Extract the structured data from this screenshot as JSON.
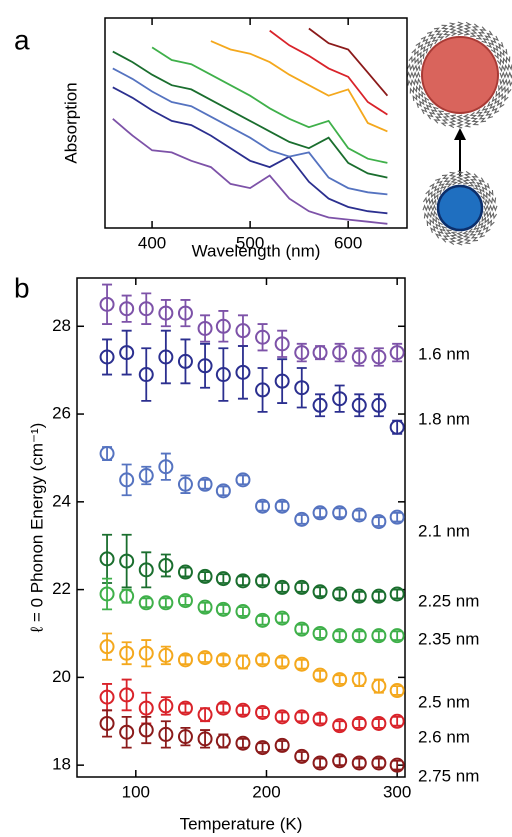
{
  "chart_data": [
    {
      "type": "line",
      "panel_label": "a",
      "ylabel": "Absorption",
      "xlabel": "Wavelength (nm)",
      "xlim": [
        352,
        660
      ],
      "xticks": [
        400,
        500,
        600
      ],
      "ylim": [
        0,
        10
      ],
      "x": [
        360,
        380,
        400,
        420,
        440,
        460,
        480,
        500,
        520,
        540,
        560,
        580,
        600,
        620,
        640
      ],
      "series": [
        {
          "color": "#7d52a8",
          "values": [
            5.2,
            4.4,
            3.7,
            3.6,
            3.2,
            2.9,
            2.1,
            1.9,
            2.5,
            1.4,
            0.8,
            0.5,
            0.4,
            0.3,
            0.2
          ]
        },
        {
          "color": "#2b2f8f",
          "values": [
            6.7,
            6.2,
            5.6,
            5.1,
            4.9,
            4.4,
            3.8,
            3.2,
            2.9,
            3.4,
            2.2,
            1.4,
            1.0,
            0.8,
            0.7
          ]
        },
        {
          "color": "#5573c0",
          "values": [
            7.6,
            7.1,
            6.5,
            6.0,
            5.8,
            5.3,
            4.8,
            4.3,
            3.7,
            3.4,
            3.6,
            2.4,
            1.9,
            1.7,
            1.6
          ]
        },
        {
          "color": "#1a6e2e",
          "values": [
            8.4,
            7.9,
            7.3,
            6.8,
            6.6,
            6.1,
            5.6,
            5.1,
            4.6,
            4.1,
            3.8,
            4.3,
            3.1,
            2.6,
            2.4
          ]
        },
        {
          "color": "#3fb04a",
          "values": [
            null,
            null,
            8.6,
            8.0,
            7.8,
            7.3,
            6.8,
            6.3,
            5.7,
            5.2,
            4.8,
            5.1,
            3.8,
            3.3,
            3.1
          ]
        },
        {
          "color": "#f4a81d",
          "values": [
            null,
            null,
            null,
            null,
            null,
            8.9,
            8.5,
            8.3,
            7.9,
            7.3,
            6.8,
            6.3,
            6.6,
            5.0,
            4.6
          ]
        },
        {
          "color": "#d9232a",
          "values": [
            null,
            null,
            null,
            null,
            null,
            null,
            null,
            null,
            9.4,
            8.7,
            8.2,
            7.6,
            7.2,
            6.0,
            5.4
          ]
        },
        {
          "color": "#8b1a1a",
          "values": [
            null,
            null,
            null,
            null,
            null,
            null,
            null,
            null,
            null,
            null,
            9.5,
            8.8,
            8.5,
            7.4,
            6.3
          ]
        }
      ]
    },
    {
      "type": "scatter",
      "panel_label": "b",
      "ylabel": "ℓ = 0 Phonon Energy (cm⁻¹)",
      "xlabel": "Temperature (K)",
      "xlim": [
        55,
        306
      ],
      "xticks": [
        100,
        200,
        300
      ],
      "ylim": [
        17.73,
        29.1
      ],
      "yticks": [
        18,
        20,
        22,
        24,
        26,
        28
      ],
      "x": [
        78,
        93,
        108,
        123,
        138,
        153,
        167,
        182,
        197,
        212,
        227,
        241,
        256,
        271,
        286,
        300
      ],
      "series": [
        {
          "name": "1.6 nm",
          "color": "#7d52a8",
          "values": [
            28.5,
            28.4,
            28.4,
            28.3,
            28.3,
            27.95,
            28.0,
            27.9,
            27.75,
            27.6,
            27.4,
            27.4,
            27.4,
            27.3,
            27.3,
            27.4
          ],
          "errors": [
            0.45,
            0.3,
            0.35,
            0.3,
            0.3,
            0.3,
            0.35,
            0.35,
            0.3,
            0.3,
            0.2,
            0.15,
            0.2,
            0.2,
            0.2,
            0.2
          ]
        },
        {
          "name": "1.8 nm",
          "color": "#2b2f8f",
          "values": [
            27.3,
            27.4,
            26.9,
            27.3,
            27.2,
            27.1,
            26.9,
            26.95,
            26.55,
            26.75,
            26.6,
            26.2,
            26.35,
            26.2,
            26.2,
            25.7
          ],
          "errors": [
            0.4,
            0.5,
            0.6,
            0.6,
            0.5,
            0.5,
            0.6,
            0.6,
            0.5,
            0.5,
            0.45,
            0.25,
            0.3,
            0.25,
            0.25,
            0.15
          ]
        },
        {
          "name": "2.1 nm",
          "color": "#5573c0",
          "values": [
            25.1,
            24.5,
            24.6,
            24.8,
            24.4,
            24.4,
            24.25,
            24.5,
            23.9,
            23.9,
            23.6,
            23.75,
            23.75,
            23.7,
            23.55,
            23.65
          ],
          "errors": [
            0.15,
            0.35,
            0.2,
            0.3,
            0.2,
            0.1,
            0.1,
            0.1,
            0.1,
            0.1,
            0.1,
            0.1,
            0.1,
            0.1,
            0.1,
            0.1
          ]
        },
        {
          "name": "2.25 nm",
          "color": "#1a6e2e",
          "values": [
            22.7,
            22.65,
            22.45,
            22.55,
            22.4,
            22.3,
            22.25,
            22.2,
            22.2,
            22.05,
            22.05,
            21.95,
            21.9,
            21.85,
            21.85,
            21.9
          ],
          "errors": [
            0.55,
            0.6,
            0.4,
            0.25,
            0.1,
            0.1,
            0.1,
            0.1,
            0.1,
            0.1,
            0.1,
            0.1,
            0.1,
            0.1,
            0.1,
            0.1
          ]
        },
        {
          "name": "2.35 nm",
          "color": "#3fb04a",
          "values": [
            21.9,
            21.85,
            21.7,
            21.7,
            21.75,
            21.6,
            21.55,
            21.5,
            21.3,
            21.35,
            21.1,
            21.0,
            20.95,
            20.95,
            20.95,
            20.95
          ],
          "errors": [
            0.35,
            0.15,
            0.1,
            0.1,
            0.1,
            0.1,
            0.1,
            0.1,
            0.1,
            0.1,
            0.1,
            0.1,
            0.1,
            0.1,
            0.1,
            0.1
          ]
        },
        {
          "name": "2.5 nm",
          "color": "#f4a81d",
          "values": [
            20.7,
            20.55,
            20.55,
            20.5,
            20.4,
            20.45,
            20.4,
            20.35,
            20.4,
            20.35,
            20.3,
            20.05,
            19.95,
            19.95,
            19.8,
            19.7
          ],
          "errors": [
            0.3,
            0.25,
            0.3,
            0.2,
            0.1,
            0.1,
            0.1,
            0.15,
            0.1,
            0.1,
            0.1,
            0.1,
            0.1,
            0.15,
            0.15,
            0.1
          ]
        },
        {
          "name": "2.6 nm",
          "color": "#d9232a",
          "values": [
            19.55,
            19.6,
            19.3,
            19.35,
            19.3,
            19.15,
            19.3,
            19.25,
            19.2,
            19.1,
            19.1,
            19.05,
            18.9,
            18.95,
            18.95,
            19.0
          ],
          "errors": [
            0.3,
            0.35,
            0.35,
            0.2,
            0.1,
            0.15,
            0.1,
            0.1,
            0.1,
            0.1,
            0.1,
            0.1,
            0.1,
            0.1,
            0.1,
            0.1
          ]
        },
        {
          "name": "2.75 nm",
          "color": "#8b1a1a",
          "values": [
            18.95,
            18.75,
            18.8,
            18.7,
            18.65,
            18.6,
            18.55,
            18.5,
            18.4,
            18.45,
            18.2,
            18.05,
            18.1,
            18.05,
            18.05,
            18.0
          ],
          "errors": [
            0.3,
            0.35,
            0.3,
            0.3,
            0.2,
            0.2,
            0.15,
            0.1,
            0.1,
            0.1,
            0.1,
            0.1,
            0.1,
            0.1,
            0.1,
            0.1
          ]
        }
      ]
    }
  ]
}
